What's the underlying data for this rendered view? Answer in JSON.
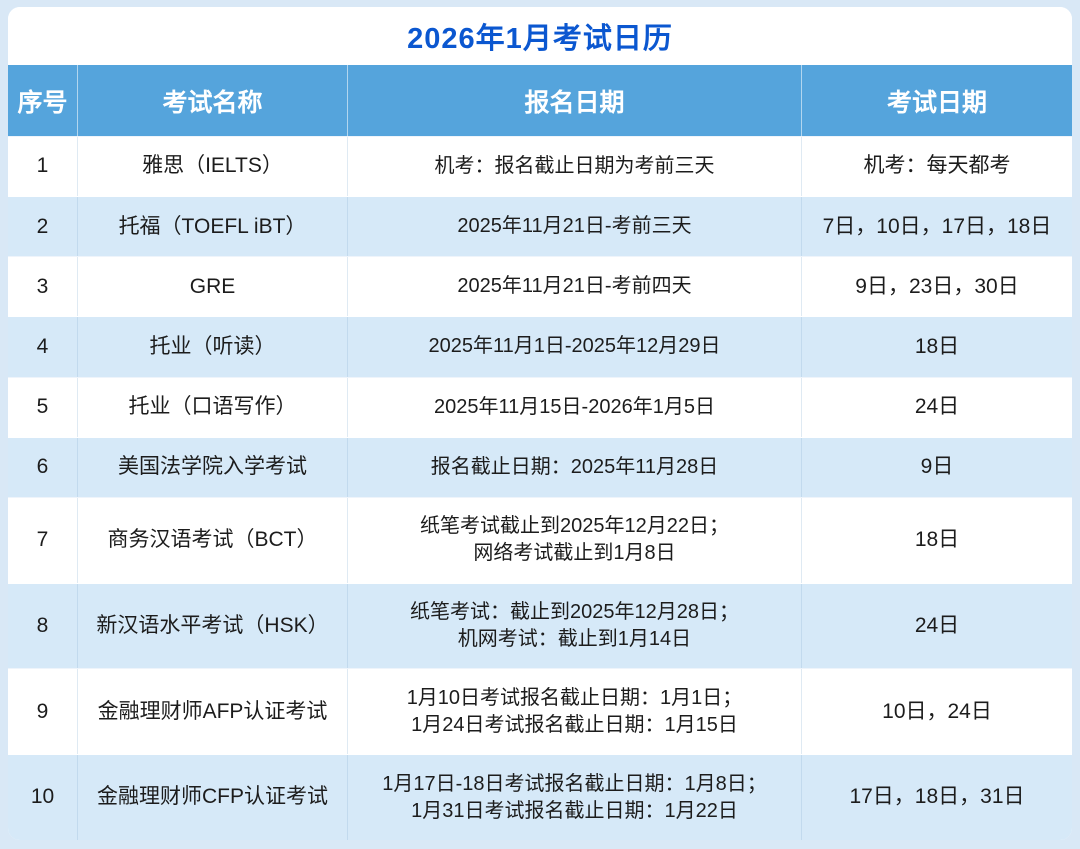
{
  "title": "2026年1月考试日历",
  "table": {
    "headers": [
      "序号",
      "考试名称",
      "报名日期",
      "考试日期"
    ],
    "rows": [
      {
        "no": "1",
        "name": "雅思（IELTS）",
        "reg": "机考：报名截止日期为考前三天",
        "date": "机考：每天都考"
      },
      {
        "no": "2",
        "name": "托福（TOEFL iBT）",
        "reg": "2025年11月21日-考前三天",
        "date": "7日，10日，17日，18日"
      },
      {
        "no": "3",
        "name": "GRE",
        "reg": "2025年11月21日-考前四天",
        "date": "9日，23日，30日"
      },
      {
        "no": "4",
        "name": "托业（听读）",
        "reg": "2025年11月1日-2025年12月29日",
        "date": "18日"
      },
      {
        "no": "5",
        "name": "托业（口语写作）",
        "reg": "2025年11月15日-2026年1月5日",
        "date": "24日"
      },
      {
        "no": "6",
        "name": "美国法学院入学考试",
        "reg": "报名截止日期：2025年11月28日",
        "date": "9日"
      },
      {
        "no": "7",
        "name": "商务汉语考试（BCT）",
        "reg": "纸笔考试截止到2025年12月22日；\n网络考试截止到1月8日",
        "date": "18日"
      },
      {
        "no": "8",
        "name": "新汉语水平考试（HSK）",
        "reg": "纸笔考试：截止到2025年12月28日；\n机网考试：截止到1月14日",
        "date": "24日"
      },
      {
        "no": "9",
        "name": "金融理财师AFP认证考试",
        "reg": "1月10日考试报名截止日期：1月1日；\n1月24日考试报名截止日期：1月15日",
        "date": "10日，24日"
      },
      {
        "no": "10",
        "name": "金融理财师CFP认证考试",
        "reg": "1月17日-18日考试报名截止日期：1月8日；\n1月31日考试报名截止日期：1月22日",
        "date": "17日，18日，31日"
      }
    ]
  },
  "colors": {
    "title_text": "#0b57d0",
    "header_bg": "#55a4dc",
    "header_text": "#ffffff",
    "row_alt_bg": "#d6e9f8",
    "row_bg": "#ffffff",
    "page_bg": "#d9e8f6"
  }
}
